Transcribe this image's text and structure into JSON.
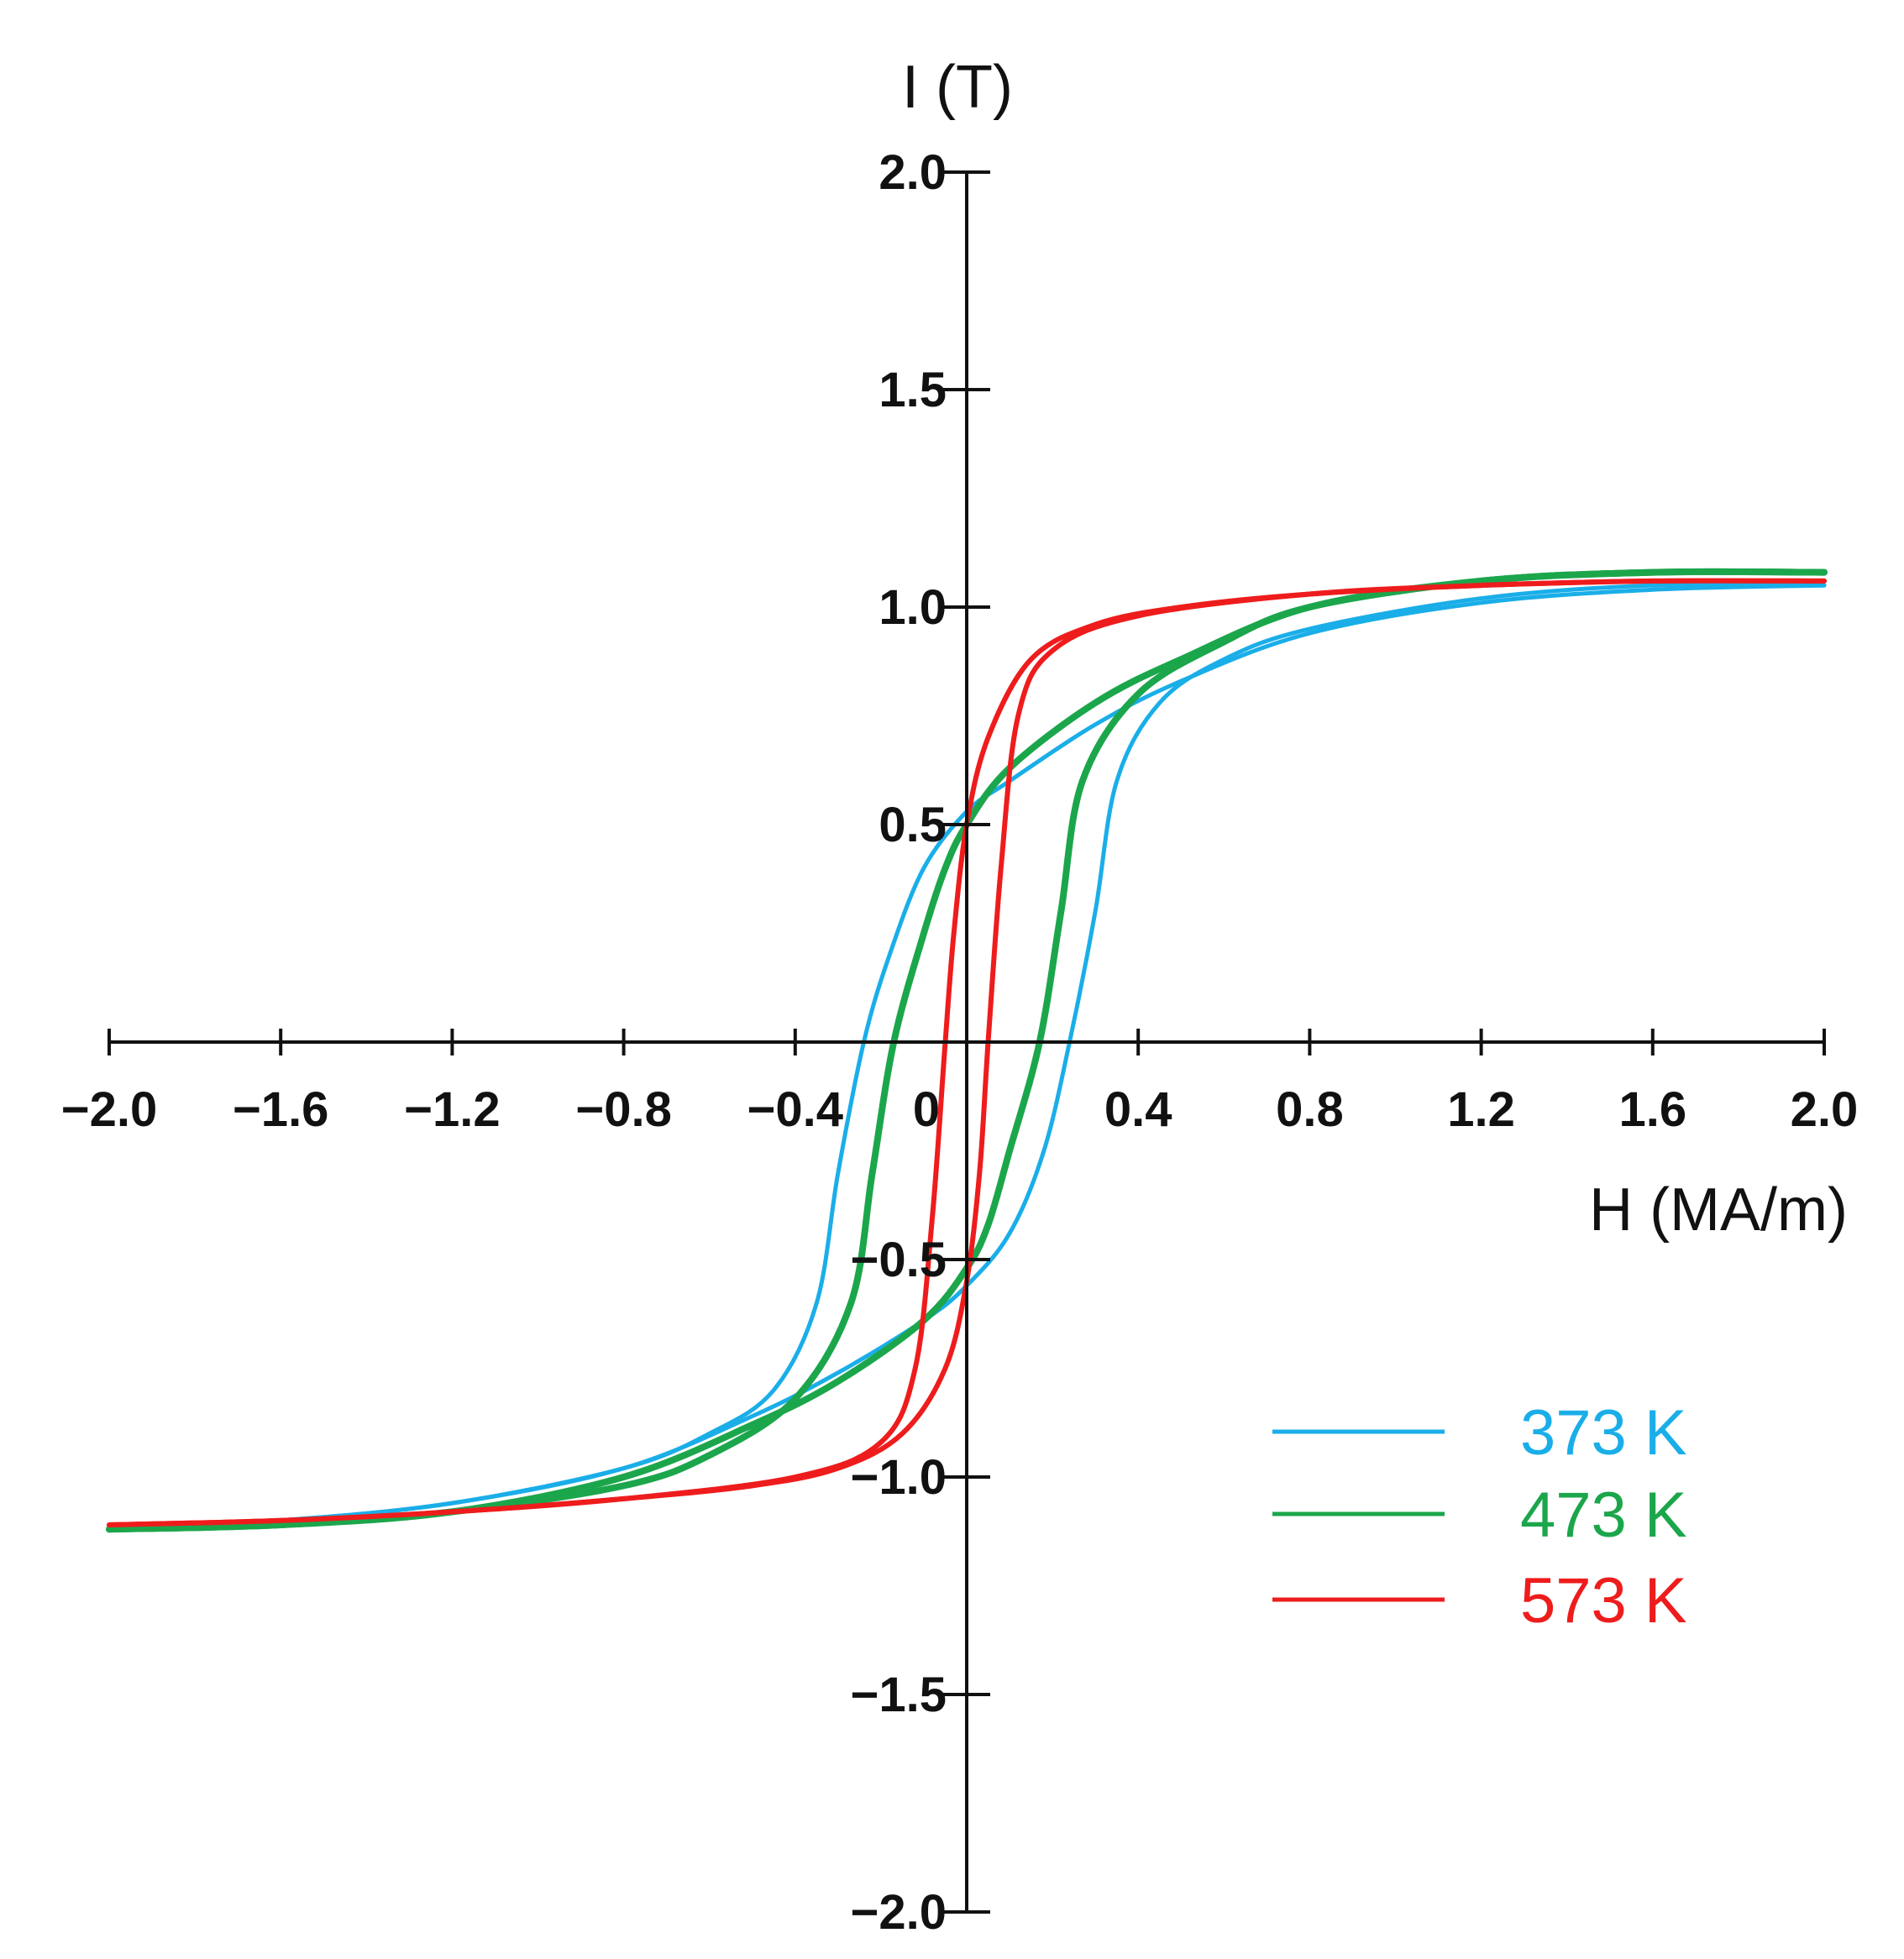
{
  "chart_data": {
    "type": "line",
    "title": "",
    "xlabel": "H (MA/m)",
    "ylabel": "I (T)",
    "xlim": [
      -2.0,
      2.0
    ],
    "ylim": [
      -2.0,
      2.0
    ],
    "grid": false,
    "legend_position": "bottom-right",
    "x_ticks": [
      {
        "value": -2.0,
        "label": "−2.0"
      },
      {
        "value": -1.6,
        "label": "−1.6"
      },
      {
        "value": -1.2,
        "label": "−1.2"
      },
      {
        "value": -0.8,
        "label": "−0.8"
      },
      {
        "value": -0.4,
        "label": "−0.4"
      },
      {
        "value": 0,
        "label": "0"
      },
      {
        "value": 0.4,
        "label": "0.4"
      },
      {
        "value": 0.8,
        "label": "0.8"
      },
      {
        "value": 1.2,
        "label": "1.2"
      },
      {
        "value": 1.6,
        "label": "1.6"
      },
      {
        "value": 2.0,
        "label": "2.0"
      }
    ],
    "y_ticks": [
      {
        "value": 2.0,
        "label": "2.0"
      },
      {
        "value": 1.5,
        "label": "1.5"
      },
      {
        "value": 1.0,
        "label": "1.0"
      },
      {
        "value": 0.5,
        "label": "0.5"
      },
      {
        "value": -0.5,
        "label": "−0.5"
      },
      {
        "value": -1.0,
        "label": "−1.0"
      },
      {
        "value": -1.5,
        "label": "−1.5"
      },
      {
        "value": -2.0,
        "label": "−2.0"
      }
    ],
    "series": [
      {
        "name": "373 K",
        "color": "#1aaee8",
        "descending": {
          "x": [
            2.0,
            1.6,
            1.2,
            0.8,
            0.5,
            0.3,
            0.1,
            0.0,
            -0.1,
            -0.18,
            -0.24,
            -0.3,
            -0.35,
            -0.45,
            -0.6,
            -0.8,
            -1.2,
            -1.6,
            -2.0
          ],
          "y": [
            1.05,
            1.04,
            1.01,
            0.94,
            0.83,
            0.73,
            0.6,
            0.53,
            0.4,
            0.2,
            0.0,
            -0.3,
            -0.6,
            -0.8,
            -0.9,
            -0.98,
            -1.06,
            -1.1,
            -1.12
          ]
        },
        "ascending": {
          "x": [
            -2.0,
            -1.6,
            -1.2,
            -0.8,
            -0.5,
            -0.3,
            -0.1,
            0.0,
            0.1,
            0.18,
            0.24,
            0.3,
            0.35,
            0.45,
            0.6,
            0.8,
            1.2,
            1.6,
            2.0
          ],
          "y": [
            -1.12,
            -1.1,
            -1.06,
            -0.98,
            -0.86,
            -0.76,
            -0.64,
            -0.56,
            -0.44,
            -0.25,
            0.0,
            0.3,
            0.6,
            0.78,
            0.88,
            0.95,
            1.02,
            1.05,
            1.05
          ]
        }
      },
      {
        "name": "473 K",
        "color": "#1ca64c",
        "descending": {
          "x": [
            2.0,
            1.6,
            1.2,
            0.8,
            0.5,
            0.3,
            0.1,
            0.0,
            -0.05,
            -0.1,
            -0.17,
            -0.22,
            -0.27,
            -0.4,
            -0.6,
            -0.8,
            -1.2,
            -1.6,
            -2.0
          ],
          "y": [
            1.08,
            1.08,
            1.06,
            1.0,
            0.88,
            0.78,
            0.63,
            0.5,
            0.4,
            0.25,
            0.0,
            -0.3,
            -0.6,
            -0.82,
            -0.95,
            -1.02,
            -1.08,
            -1.11,
            -1.12
          ]
        },
        "ascending": {
          "x": [
            -2.0,
            -1.6,
            -1.2,
            -0.8,
            -0.5,
            -0.3,
            -0.1,
            0.0,
            0.05,
            0.1,
            0.17,
            0.22,
            0.27,
            0.4,
            0.6,
            0.8,
            1.2,
            1.6,
            2.0
          ],
          "y": [
            -1.12,
            -1.11,
            -1.08,
            -1.0,
            -0.88,
            -0.78,
            -0.64,
            -0.52,
            -0.42,
            -0.25,
            0.0,
            0.3,
            0.6,
            0.8,
            0.92,
            1.0,
            1.06,
            1.08,
            1.08
          ]
        }
      },
      {
        "name": "573 K",
        "color": "#ee1c1c",
        "descending": {
          "x": [
            2.0,
            1.6,
            1.2,
            0.8,
            0.5,
            0.3,
            0.15,
            0.05,
            0.0,
            -0.03,
            -0.05,
            -0.08,
            -0.12,
            -0.2,
            -0.4,
            -0.8,
            -1.2,
            -1.6,
            -2.0
          ],
          "y": [
            1.06,
            1.06,
            1.05,
            1.03,
            1.0,
            0.96,
            0.88,
            0.7,
            0.5,
            0.25,
            0.0,
            -0.4,
            -0.75,
            -0.92,
            -1.0,
            -1.05,
            -1.08,
            -1.1,
            -1.11
          ]
        },
        "ascending": {
          "x": [
            -2.0,
            -1.6,
            -1.2,
            -0.8,
            -0.5,
            -0.3,
            -0.15,
            -0.05,
            0.0,
            0.03,
            0.05,
            0.08,
            0.12,
            0.2,
            0.4,
            0.8,
            1.2,
            1.6,
            2.0
          ],
          "y": [
            -1.11,
            -1.1,
            -1.08,
            -1.05,
            -1.02,
            -0.98,
            -0.9,
            -0.75,
            -0.55,
            -0.3,
            0.0,
            0.4,
            0.75,
            0.9,
            0.98,
            1.03,
            1.05,
            1.06,
            1.06
          ]
        }
      }
    ]
  }
}
